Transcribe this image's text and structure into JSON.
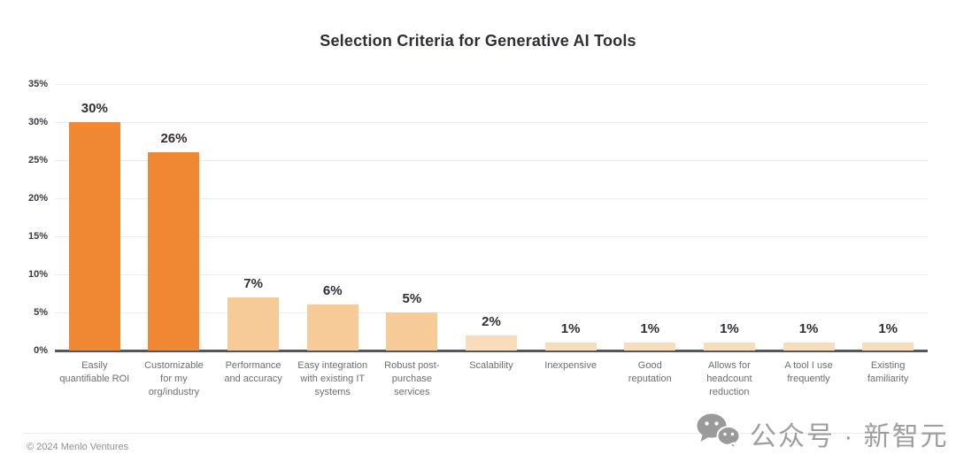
{
  "title": "Selection Criteria for Generative AI Tools",
  "chart_data": {
    "type": "bar",
    "title": "Selection Criteria for Generative AI Tools",
    "categories": [
      "Easily\nquantifiable ROI",
      "Customizable\nfor my\norg/industry",
      "Performance\nand accuracy",
      "Easy integration\nwith existing IT\nsystems",
      "Robust post-\npurchase\nservices",
      "Scalability",
      "Inexpensive",
      "Good\nreputation",
      "Allows for\nheadcount\nreduction",
      "A tool I use\nfrequently",
      "Existing\nfamiliarity"
    ],
    "values": [
      30,
      26,
      7,
      6,
      5,
      2,
      1,
      1,
      1,
      1,
      1
    ],
    "value_labels": [
      "30%",
      "26%",
      "7%",
      "6%",
      "5%",
      "2%",
      "1%",
      "1%",
      "1%",
      "1%",
      "1%"
    ],
    "bar_colors": [
      "#ef8733",
      "#ef8733",
      "#f6cb98",
      "#f6cb98",
      "#f6cb98",
      "#f9ddba",
      "#f9ddba",
      "#f9ddba",
      "#f9ddba",
      "#f9ddba",
      "#f9ddba"
    ],
    "xlabel": "",
    "ylabel": "",
    "ylim": [
      0,
      35
    ],
    "ytick_step": 5,
    "ytick_labels": [
      "0%",
      "5%",
      "10%",
      "15%",
      "20%",
      "25%",
      "30%",
      "35%"
    ],
    "grid": true,
    "legend": false
  },
  "colors": {
    "accent_strong": "#ef8733",
    "accent_mid": "#f6cb98",
    "accent_pale": "#f9ddba",
    "text_dark": "#2e2e36",
    "text_gray": "#6e6e77",
    "baseline": "#55555e",
    "gridline": "#ededed"
  },
  "footer": {
    "copyright": "© 2024 Menlo Ventures"
  },
  "watermark": {
    "icon": "wechat-icon",
    "text": "公众号 · 新智元"
  }
}
